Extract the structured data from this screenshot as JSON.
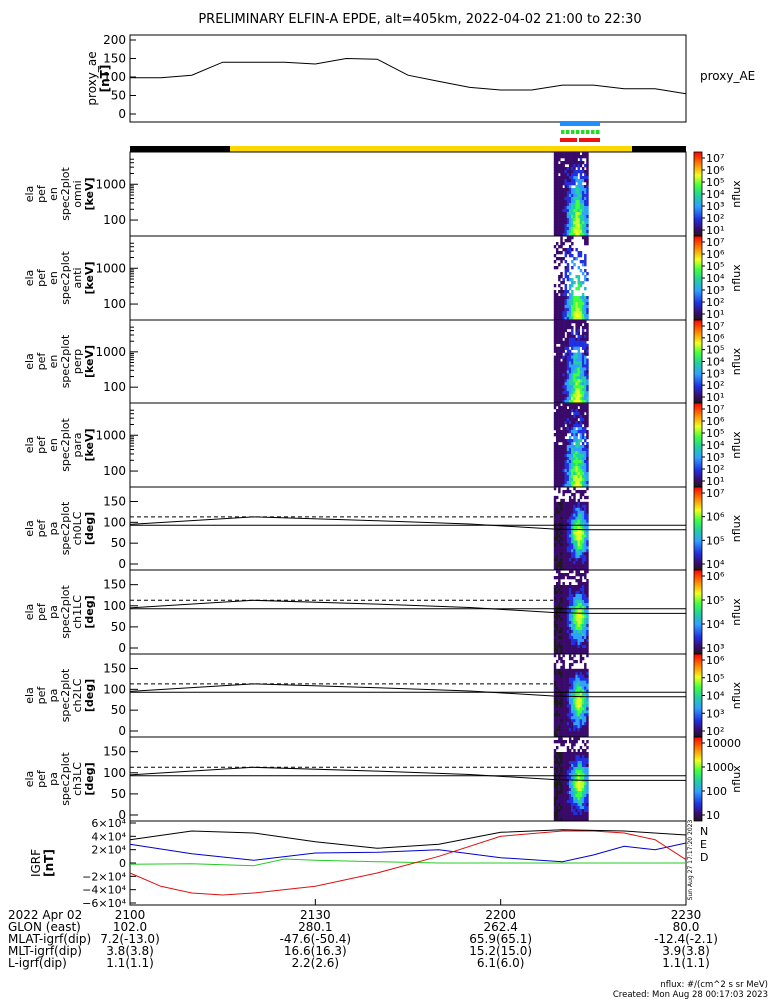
{
  "title": "PRELIMINARY ELFIN-A EPDE, alt=405km, 2022-04-02 21:00 to 22:30",
  "colors": {
    "proxy_line": "#000000",
    "orbit_dark": "#000000",
    "orbit_sun": "#ffd700",
    "marker_blue": "#1e90ff",
    "marker_green": "#22dd22",
    "marker_red": "#ee1111",
    "igrf_n": "#0000cc",
    "igrf_e": "#22cc22",
    "igrf_d": "#dd1111",
    "igrf_total": "#000000"
  },
  "proxy_panel": {
    "ylabel": "proxy_ae\n[nT]",
    "legend": "proxy_AE",
    "yticks": [
      "200",
      "150",
      "100",
      "50",
      "0"
    ]
  },
  "spec_panels": [
    {
      "ylabel": [
        "ela",
        "pef",
        "en",
        "spec2plot",
        "omni",
        "[keV]"
      ],
      "yticks": [
        "1000",
        "100"
      ],
      "cb_label": "nflux",
      "cb_ticks": [
        "10⁷",
        "10⁶",
        "10⁵",
        "10⁴",
        "10³",
        "10²",
        "10¹"
      ]
    },
    {
      "ylabel": [
        "ela",
        "pef",
        "en",
        "spec2plot",
        "anti",
        "[keV]"
      ],
      "yticks": [
        "1000",
        "100"
      ],
      "cb_label": "nflux",
      "cb_ticks": [
        "10⁷",
        "10⁶",
        "10⁵",
        "10⁴",
        "10³",
        "10²",
        "10¹"
      ]
    },
    {
      "ylabel": [
        "ela",
        "pef",
        "en",
        "spec2plot",
        "perp",
        "[keV]"
      ],
      "yticks": [
        "1000",
        "100"
      ],
      "cb_label": "nflux",
      "cb_ticks": [
        "10⁷",
        "10⁶",
        "10⁵",
        "10⁴",
        "10³",
        "10²",
        "10¹"
      ]
    },
    {
      "ylabel": [
        "ela",
        "pef",
        "en",
        "spec2plot",
        "para",
        "[keV]"
      ],
      "yticks": [
        "1000",
        "100"
      ],
      "cb_label": "nflux",
      "cb_ticks": [
        "10⁷",
        "10⁶",
        "10⁵",
        "10⁴",
        "10³",
        "10²",
        "10¹"
      ]
    }
  ],
  "pa_panels": [
    {
      "ylabel": [
        "ela",
        "pef",
        "pa",
        "spec2plot",
        "ch0LC",
        "[deg]"
      ],
      "yticks": [
        "150",
        "100",
        "50",
        "0"
      ],
      "cb_label": "nflux",
      "cb_ticks": [
        "10⁷",
        "10⁶",
        "10⁵",
        "10⁴"
      ]
    },
    {
      "ylabel": [
        "ela",
        "pef",
        "pa",
        "spec2plot",
        "ch1LC",
        "[deg]"
      ],
      "yticks": [
        "150",
        "100",
        "50",
        "0"
      ],
      "cb_label": "nflux",
      "cb_ticks": [
        "10⁶",
        "10⁵",
        "10⁴",
        "10³"
      ]
    },
    {
      "ylabel": [
        "ela",
        "pef",
        "pa",
        "spec2plot",
        "ch2LC",
        "[deg]"
      ],
      "yticks": [
        "150",
        "100",
        "50",
        "0"
      ],
      "cb_label": "nflux",
      "cb_ticks": [
        "10⁶",
        "10⁵",
        "10⁴",
        "10³",
        "10²"
      ]
    },
    {
      "ylabel": [
        "ela",
        "pef",
        "pa",
        "spec2plot",
        "ch3LC",
        "[deg]"
      ],
      "yticks": [
        "150",
        "100",
        "50",
        "0"
      ],
      "cb_label": "nflux",
      "cb_ticks": [
        "10000",
        "1000",
        "100",
        "10"
      ]
    }
  ],
  "igrf_panel": {
    "ylabel": "IGRF\n[nT]",
    "yticks": [
      "6×10⁴",
      "4×10⁴",
      "2×10⁴",
      "0",
      "−2×10⁴",
      "−4×10⁴",
      "−6×10⁴"
    ],
    "legend": [
      "N",
      "E",
      "D"
    ],
    "side_text": "Sun Aug 27 17:17:20 2023"
  },
  "footer": {
    "rows": [
      {
        "label": "2022 Apr 02",
        "values": [
          "2100",
          "2130",
          "2200",
          "2230"
        ]
      },
      {
        "label": "GLON (east)",
        "values": [
          "102.0",
          "280.1",
          "262.4",
          "80.0"
        ]
      },
      {
        "label": "MLAT-igrf(dip)",
        "values": [
          "7.2(-13.0)",
          "-47.6(-50.4)",
          "65.9(65.1)",
          "-12.4(-2.1)"
        ]
      },
      {
        "label": "MLT-igrf(dip)",
        "values": [
          "3.8(3.8)",
          "16.6(16.3)",
          "15.2(15.0)",
          "3.9(3.8)"
        ]
      },
      {
        "label": "L-igrf(dip)",
        "values": [
          "1.1(1.1)",
          "2.2(2.6)",
          "6.1(6.0)",
          "1.1(1.1)"
        ]
      }
    ],
    "units_note": "nflux: #/(cm^2 s sr MeV)",
    "created": "Created: Mon Aug 28 00:17:03 2023"
  },
  "chart_data": [
    {
      "type": "line",
      "series": [
        {
          "name": "proxy_AE",
          "x_min": [
            0,
            5,
            10,
            15,
            20,
            25,
            30,
            35,
            40,
            45,
            50,
            55,
            60,
            65,
            70,
            75,
            80,
            85,
            90
          ],
          "values": [
            98,
            98,
            105,
            140,
            140,
            140,
            135,
            150,
            148,
            105,
            88,
            72,
            65,
            65,
            78,
            78,
            68,
            68,
            55
          ]
        }
      ],
      "ylim": [
        0,
        200
      ],
      "x_range_min": [
        0,
        90
      ]
    },
    {
      "type": "heatmap",
      "description_panels": [
        "omni",
        "anti",
        "perp",
        "para",
        "ch0LC",
        "ch1LC",
        "ch2LC",
        "ch3LC"
      ],
      "data_window_min": [
        68.5,
        74.5
      ],
      "ylim_energy_keV": [
        60,
        7000
      ],
      "ylim_pa_deg": [
        0,
        180
      ]
    },
    {
      "type": "line",
      "series": [
        {
          "name": "N",
          "x_min": [
            0,
            10,
            20,
            30,
            40,
            50,
            60,
            70,
            75,
            80,
            85,
            90
          ],
          "values": [
            28000,
            14000,
            4000,
            15000,
            16000,
            20000,
            8000,
            2000,
            12000,
            25000,
            20000,
            30000
          ]
        },
        {
          "name": "E",
          "x_min": [
            0,
            10,
            20,
            25,
            30,
            40,
            50,
            60,
            70,
            80,
            90
          ],
          "values": [
            -2000,
            -1000,
            -4000,
            6000,
            4000,
            2000,
            0,
            0,
            0,
            0,
            0
          ]
        },
        {
          "name": "D",
          "x_min": [
            0,
            5,
            10,
            15,
            20,
            30,
            40,
            50,
            60,
            70,
            75,
            80,
            85,
            90
          ],
          "values": [
            -15000,
            -35000,
            -45000,
            -48000,
            -45000,
            -35000,
            -15000,
            10000,
            40000,
            48000,
            48000,
            45000,
            35000,
            5000
          ]
        },
        {
          "name": "total",
          "x_min": [
            0,
            10,
            20,
            30,
            40,
            50,
            60,
            70,
            80,
            90
          ],
          "values": [
            35000,
            48000,
            45000,
            32000,
            22000,
            28000,
            46000,
            50000,
            48000,
            42000
          ]
        }
      ],
      "ylim": [
        -60000,
        60000
      ],
      "x_range_min": [
        0,
        90
      ]
    }
  ]
}
